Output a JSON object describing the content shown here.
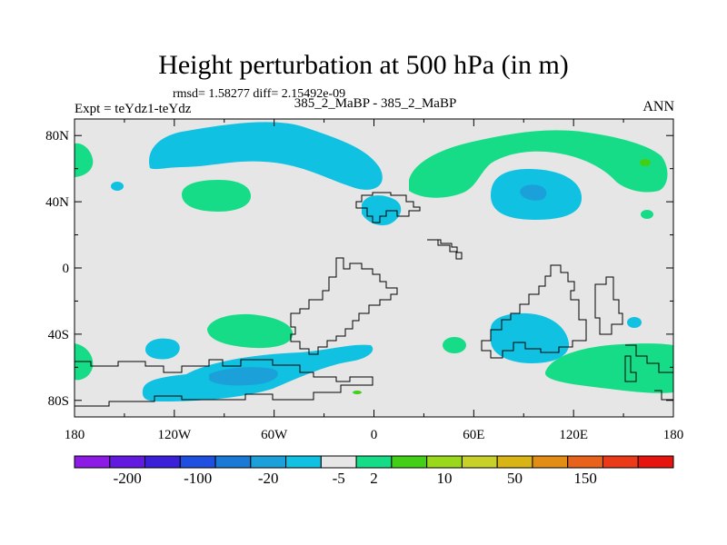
{
  "chart_data": {
    "type": "contour-map",
    "title": "Height perturbation at 500 hPa (in m)",
    "stats_text": "rmsd= 1.58277 diff= 2.15492e-09",
    "left_label": "Expt = teYdz1-teYdz",
    "center_label": "385_2_MaBP - 385_2_MaBP",
    "right_label": "ANN",
    "x_ticks": [
      "180",
      "120W",
      "60W",
      "0",
      "60E",
      "120E",
      "180"
    ],
    "y_ticks": [
      "80N",
      "40N",
      "0",
      "40S",
      "80S"
    ],
    "lon_range": [
      -180,
      180
    ],
    "lat_range": [
      -90,
      90
    ],
    "colorbar": {
      "labels": [
        "-200",
        "-100",
        "-20",
        "-5",
        "2",
        "10",
        "50",
        "150"
      ],
      "colors": [
        "#8c1be6",
        "#6219e0",
        "#3a20d8",
        "#1f4fe0",
        "#1979d4",
        "#1ba0da",
        "#10c1e1",
        "#e6e6e6",
        "#17dc87",
        "#44cf17",
        "#9ad81c",
        "#c8d02a",
        "#d8b414",
        "#e28d13",
        "#e8621c",
        "#ea3a18",
        "#e6140f"
      ]
    },
    "fill_colors": {
      "background": "#e6e6e6",
      "negative": "#10c1e1",
      "positive": "#17dc87",
      "strong_negative": "#1ba0da",
      "strong_positive": "#44cf17"
    }
  }
}
